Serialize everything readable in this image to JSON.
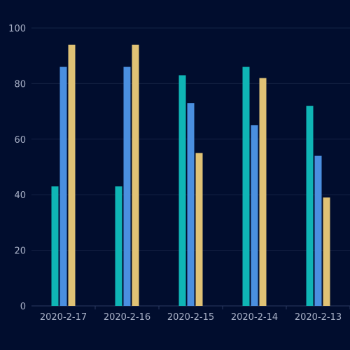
{
  "chart_data": {
    "type": "bar",
    "categories": [
      "2020-2-17",
      "2020-2-16",
      "2020-2-15",
      "2020-2-14",
      "2020-2-13"
    ],
    "series": [
      {
        "color": "#0fb5b5",
        "values": [
          43,
          43,
          83,
          86,
          72
        ]
      },
      {
        "color": "#4a8fe0",
        "values": [
          86,
          86,
          73,
          65,
          54
        ]
      },
      {
        "color": "#e0c275",
        "values": [
          94,
          94,
          55,
          82,
          39
        ]
      }
    ],
    "yticks": [
      0,
      20,
      40,
      60,
      80,
      100
    ],
    "ylim": [
      0,
      100
    ],
    "grid": true
  },
  "colors": {
    "background": "#010d2e",
    "grid": "#142244",
    "axis": "#2a3960",
    "tick_label": "#a9b1c7"
  }
}
